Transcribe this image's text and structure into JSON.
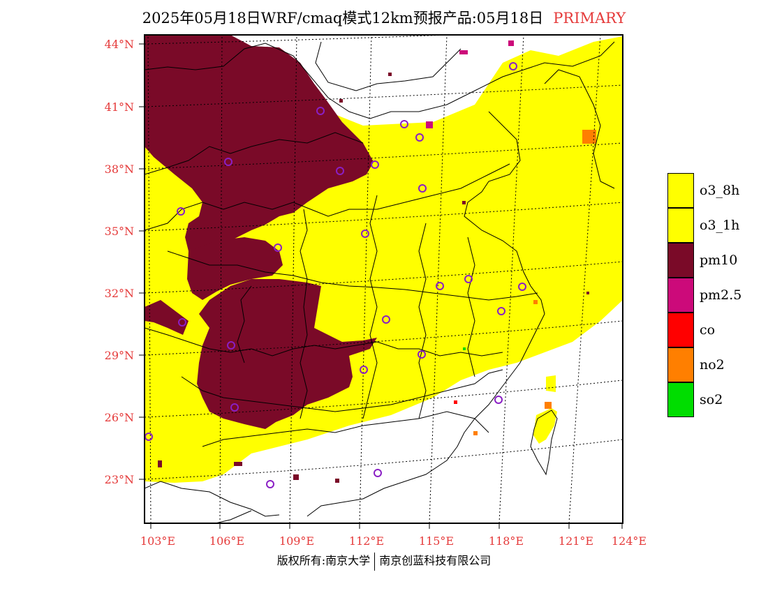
{
  "title": {
    "main": "2025年05月18日WRF/cmaq模式12km预报产品:05月18日",
    "tag": "PRIMARY"
  },
  "lat_labels": [
    "44°N",
    "41°N",
    "38°N",
    "35°N",
    "32°N",
    "29°N",
    "26°N",
    "23°N"
  ],
  "lon_labels": [
    "103°E",
    "106°E",
    "109°E",
    "112°E",
    "115°E",
    "118°E",
    "121°E",
    "124°E"
  ],
  "legend": [
    {
      "label": "o3_8h",
      "color": "#ffff00"
    },
    {
      "label": "o3_1h",
      "color": "#ffff00"
    },
    {
      "label": "pm10",
      "color": "#7a0a28"
    },
    {
      "label": "pm2.5",
      "color": "#cc0a7a"
    },
    {
      "label": "co",
      "color": "#ff0000"
    },
    {
      "label": "no2",
      "color": "#ff7f00"
    },
    {
      "label": "so2",
      "color": "#00dd00"
    }
  ],
  "footer": {
    "left": "版权所有:南京大学",
    "right": "南京创蓝科技有限公司"
  }
}
